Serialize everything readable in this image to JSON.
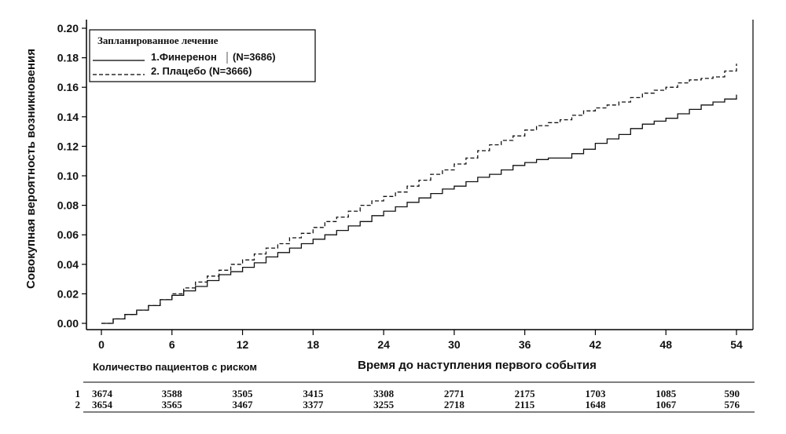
{
  "chart_data": {
    "type": "line",
    "xlabel": "Время до наступления первого события",
    "ylabel": "Совокупная вероятность возникновения",
    "xlim": [
      0,
      54
    ],
    "ylim": [
      0,
      0.2
    ],
    "x_ticks": [
      "0",
      "6",
      "12",
      "18",
      "24",
      "30",
      "36",
      "42",
      "48",
      "54"
    ],
    "y_ticks": [
      "0.00",
      "0.02",
      "0.04",
      "0.06",
      "0.08",
      "0.10",
      "0.12",
      "0.14",
      "0.16",
      "0.18",
      "0.20"
    ],
    "grid": false,
    "legend": {
      "title": "Запланированное лечение",
      "placement": "top-left",
      "entries": [
        {
          "label": "1.Финеренон",
          "n": "(N=3686)",
          "style": "solid"
        },
        {
          "label": "2. Плацебо (N=3666)",
          "style": "dashed"
        }
      ]
    },
    "series": [
      {
        "name": "1.Финеренон",
        "style": "solid",
        "x": [
          0,
          1,
          2,
          3,
          4,
          5,
          6,
          7,
          8,
          9,
          10,
          11,
          12,
          13,
          14,
          15,
          16,
          17,
          18,
          19,
          20,
          21,
          22,
          23,
          24,
          25,
          26,
          27,
          28,
          29,
          30,
          31,
          32,
          33,
          34,
          35,
          36,
          37,
          38,
          39,
          40,
          41,
          42,
          43,
          44,
          45,
          46,
          47,
          48,
          49,
          50,
          51,
          52,
          53,
          54
        ],
        "y": [
          0.0,
          0.003,
          0.006,
          0.009,
          0.012,
          0.016,
          0.019,
          0.022,
          0.025,
          0.029,
          0.033,
          0.035,
          0.038,
          0.041,
          0.045,
          0.048,
          0.051,
          0.054,
          0.057,
          0.06,
          0.063,
          0.066,
          0.069,
          0.073,
          0.076,
          0.079,
          0.082,
          0.085,
          0.088,
          0.091,
          0.093,
          0.096,
          0.099,
          0.101,
          0.104,
          0.107,
          0.109,
          0.111,
          0.112,
          0.112,
          0.115,
          0.118,
          0.122,
          0.125,
          0.128,
          0.132,
          0.135,
          0.137,
          0.139,
          0.142,
          0.145,
          0.148,
          0.15,
          0.152,
          0.155
        ]
      },
      {
        "name": "2. Плацебо (N=3666)",
        "style": "dashed",
        "x": [
          0,
          1,
          2,
          3,
          4,
          5,
          6,
          7,
          8,
          9,
          10,
          11,
          12,
          13,
          14,
          15,
          16,
          17,
          18,
          19,
          20,
          21,
          22,
          23,
          24,
          25,
          26,
          27,
          28,
          29,
          30,
          31,
          32,
          33,
          34,
          35,
          36,
          37,
          38,
          39,
          40,
          41,
          42,
          43,
          44,
          45,
          46,
          47,
          48,
          49,
          50,
          51,
          52,
          53,
          54
        ],
        "y": [
          0.0,
          0.003,
          0.006,
          0.009,
          0.012,
          0.016,
          0.02,
          0.024,
          0.028,
          0.032,
          0.036,
          0.04,
          0.043,
          0.047,
          0.051,
          0.054,
          0.058,
          0.061,
          0.065,
          0.069,
          0.072,
          0.076,
          0.08,
          0.083,
          0.086,
          0.089,
          0.093,
          0.097,
          0.101,
          0.104,
          0.108,
          0.112,
          0.117,
          0.121,
          0.124,
          0.127,
          0.131,
          0.134,
          0.136,
          0.138,
          0.141,
          0.144,
          0.146,
          0.148,
          0.15,
          0.153,
          0.156,
          0.158,
          0.16,
          0.163,
          0.165,
          0.166,
          0.167,
          0.171,
          0.176
        ]
      }
    ],
    "risk_table": {
      "title": "Количество пациентов с риском",
      "times": [
        0,
        6,
        12,
        18,
        24,
        30,
        36,
        42,
        48,
        54
      ],
      "rows": [
        {
          "label": "1",
          "values": [
            "3674",
            "3588",
            "3505",
            "3415",
            "3308",
            "2771",
            "2175",
            "1703",
            "1085",
            "590"
          ]
        },
        {
          "label": "2",
          "values": [
            "3654",
            "3565",
            "3467",
            "3377",
            "3255",
            "2718",
            "2115",
            "1648",
            "1067",
            "576"
          ]
        }
      ]
    }
  }
}
